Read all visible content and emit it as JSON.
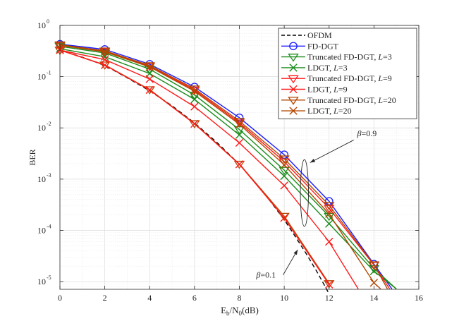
{
  "chart_data": {
    "type": "line",
    "title": "",
    "xlabel": "E_b/N_0(dB)",
    "xlabel_parts": {
      "main": "E",
      "sub1": "b",
      "mid": "/N",
      "sub2": "0",
      "unit": "(dB)"
    },
    "ylabel": "BER",
    "xlim": [
      0,
      16
    ],
    "ylim_log10": [
      -5.15,
      0
    ],
    "y_scale": "log",
    "grid": true,
    "x_ticks": [
      0,
      2,
      4,
      6,
      8,
      10,
      12,
      14,
      16
    ],
    "x_tick_labels": [
      "0",
      "2",
      "4",
      "6",
      "8",
      "10",
      "12",
      "14",
      "16"
    ],
    "y_ticks_exp": [
      0,
      -1,
      -2,
      -3,
      -4,
      -5
    ],
    "y_tick_labels": [
      {
        "base": "10",
        "exp": "0"
      },
      {
        "base": "10",
        "exp": "-1"
      },
      {
        "base": "10",
        "exp": "-2"
      },
      {
        "base": "10",
        "exp": "-3"
      },
      {
        "base": "10",
        "exp": "-4"
      },
      {
        "base": "10",
        "exp": "-5"
      }
    ],
    "legend_position": "top-right",
    "series": [
      {
        "name": "OFDM",
        "label_parts": [
          "OFDM"
        ],
        "color": "#000000",
        "dash": "dashed",
        "marker": "none",
        "x": [
          0,
          1,
          2,
          3,
          4,
          5,
          6,
          7,
          8,
          9,
          10,
          10.5,
          11,
          11.5,
          12
        ],
        "y": [
          0.33,
          0.24,
          0.165,
          0.095,
          0.053,
          0.027,
          0.0125,
          0.0052,
          0.00195,
          0.00061,
          0.000162,
          7.5e-05,
          3.4e-05,
          1.45e-05,
          5.8e-06
        ]
      },
      {
        "name": "FD-DGT",
        "label_parts": [
          "FD-DGT"
        ],
        "color": "#1a1aff",
        "dash": "solid",
        "marker": "circle",
        "x": [
          0,
          2,
          4,
          6,
          8,
          10,
          12,
          14,
          14.8
        ],
        "y": [
          0.43,
          0.34,
          0.175,
          0.063,
          0.0158,
          0.003,
          0.00037,
          2.2e-05,
          7.2e-06
        ]
      },
      {
        "name": "Truncated FD-DGT, L=3",
        "label_parts": [
          "Truncated FD-DGT, ",
          "L",
          "=3"
        ],
        "color": "#1a8c1a",
        "dash": "solid",
        "marker": "triangle-down",
        "x": [
          0,
          2,
          4,
          6,
          8,
          10,
          12,
          14,
          15
        ],
        "y": [
          0.39,
          0.29,
          0.14,
          0.044,
          0.0093,
          0.0015,
          0.00019,
          1.8e-05,
          7.2e-06
        ]
      },
      {
        "name": "LDGT, L=3",
        "label_parts": [
          "LDGT, ",
          "L",
          "=3"
        ],
        "color": "#1a8c1a",
        "dash": "solid",
        "marker": "x",
        "x": [
          0,
          2,
          4,
          6,
          8,
          10,
          12,
          14,
          15
        ],
        "y": [
          0.35,
          0.245,
          0.115,
          0.036,
          0.0073,
          0.00115,
          0.000135,
          1.6e-05,
          7.2e-06
        ]
      },
      {
        "name": "Truncated FD-DGT, L=9",
        "label_parts": [
          "Truncated FD-DGT, ",
          "L",
          "=9"
        ],
        "color": "#ff1a1a",
        "dash": "solid",
        "marker": "triangle-down",
        "x": [
          0,
          2,
          4,
          6,
          8,
          10,
          12,
          14,
          14.7
        ],
        "y": [
          0.41,
          0.31,
          0.16,
          0.055,
          0.0126,
          0.0022,
          0.00027,
          2.1e-05,
          7.2e-06
        ]
      },
      {
        "name": "LDGT, L=9",
        "label_parts": [
          "LDGT, ",
          "L",
          "=9"
        ],
        "color": "#ff1a1a",
        "dash": "solid",
        "marker": "x",
        "x": [
          0,
          2,
          4,
          6,
          8,
          10,
          12,
          13.3
        ],
        "y": [
          0.33,
          0.215,
          0.09,
          0.026,
          0.0051,
          0.00075,
          6e-05,
          7.2e-06
        ]
      },
      {
        "name": "Truncated FD-DGT, L=20",
        "label_parts": [
          "Truncated FD-DGT, ",
          "L",
          "=20"
        ],
        "color": "#b34700",
        "dash": "solid",
        "marker": "triangle-down",
        "x": [
          0,
          2,
          4,
          6,
          8,
          10,
          12,
          14,
          14.6
        ],
        "y": [
          0.42,
          0.32,
          0.165,
          0.058,
          0.0136,
          0.0025,
          0.00031,
          2.15e-05,
          7.2e-06
        ]
      },
      {
        "name": "LDGT, L=20",
        "label_parts": [
          "LDGT, ",
          "L",
          "=20"
        ],
        "color": "#b34700",
        "dash": "solid",
        "marker": "x",
        "x": [
          0,
          2,
          4,
          6,
          8,
          10,
          12,
          14,
          14.3
        ],
        "y": [
          0.41,
          0.305,
          0.155,
          0.052,
          0.0118,
          0.0019,
          0.00021,
          9.5e-06,
          7.2e-06
        ]
      },
      {
        "name": "beta=0.1 group (overlapping)",
        "label_parts": [],
        "color": "#b34700",
        "dash": "solid",
        "marker": "triangle-down",
        "in_legend": false,
        "x": [
          0,
          2,
          4,
          6,
          8,
          10,
          12
        ],
        "y": [
          0.33,
          0.17,
          0.056,
          0.0122,
          0.00197,
          0.00019,
          9.2e-06
        ]
      },
      {
        "name": "beta=0.1 group LDGT (overlapping)",
        "label_parts": [],
        "color": "#ff1a1a",
        "dash": "solid",
        "marker": "x",
        "in_legend": false,
        "x": [
          0,
          2,
          4,
          6,
          8,
          10,
          12
        ],
        "y": [
          0.33,
          0.168,
          0.055,
          0.012,
          0.00195,
          0.000175,
          8.8e-06
        ]
      }
    ],
    "annotations": [
      {
        "id": "beta09",
        "beta_symbol": "β",
        "value_text": "=0.9",
        "text_x": 13.25,
        "text_y": 0.0078,
        "arrow_from_x": 13.1,
        "arrow_from_y": 0.0058,
        "arrow_to_x": 11.15,
        "arrow_to_y": 0.0021
      },
      {
        "id": "beta01",
        "beta_symbol": "β",
        "value_text": "=0.1",
        "text_x": 8.75,
        "text_y": 1.35e-05,
        "arrow_from_x": 9.95,
        "arrow_from_y": 1.35e-05,
        "arrow_to_x": 10.6,
        "arrow_to_y": 4.2e-05
      }
    ],
    "ellipse": {
      "cx": 10.9,
      "cy": 0.00085,
      "rx_data": 0.18,
      "y_top": 0.0024,
      "y_bottom": 0.00012
    }
  }
}
